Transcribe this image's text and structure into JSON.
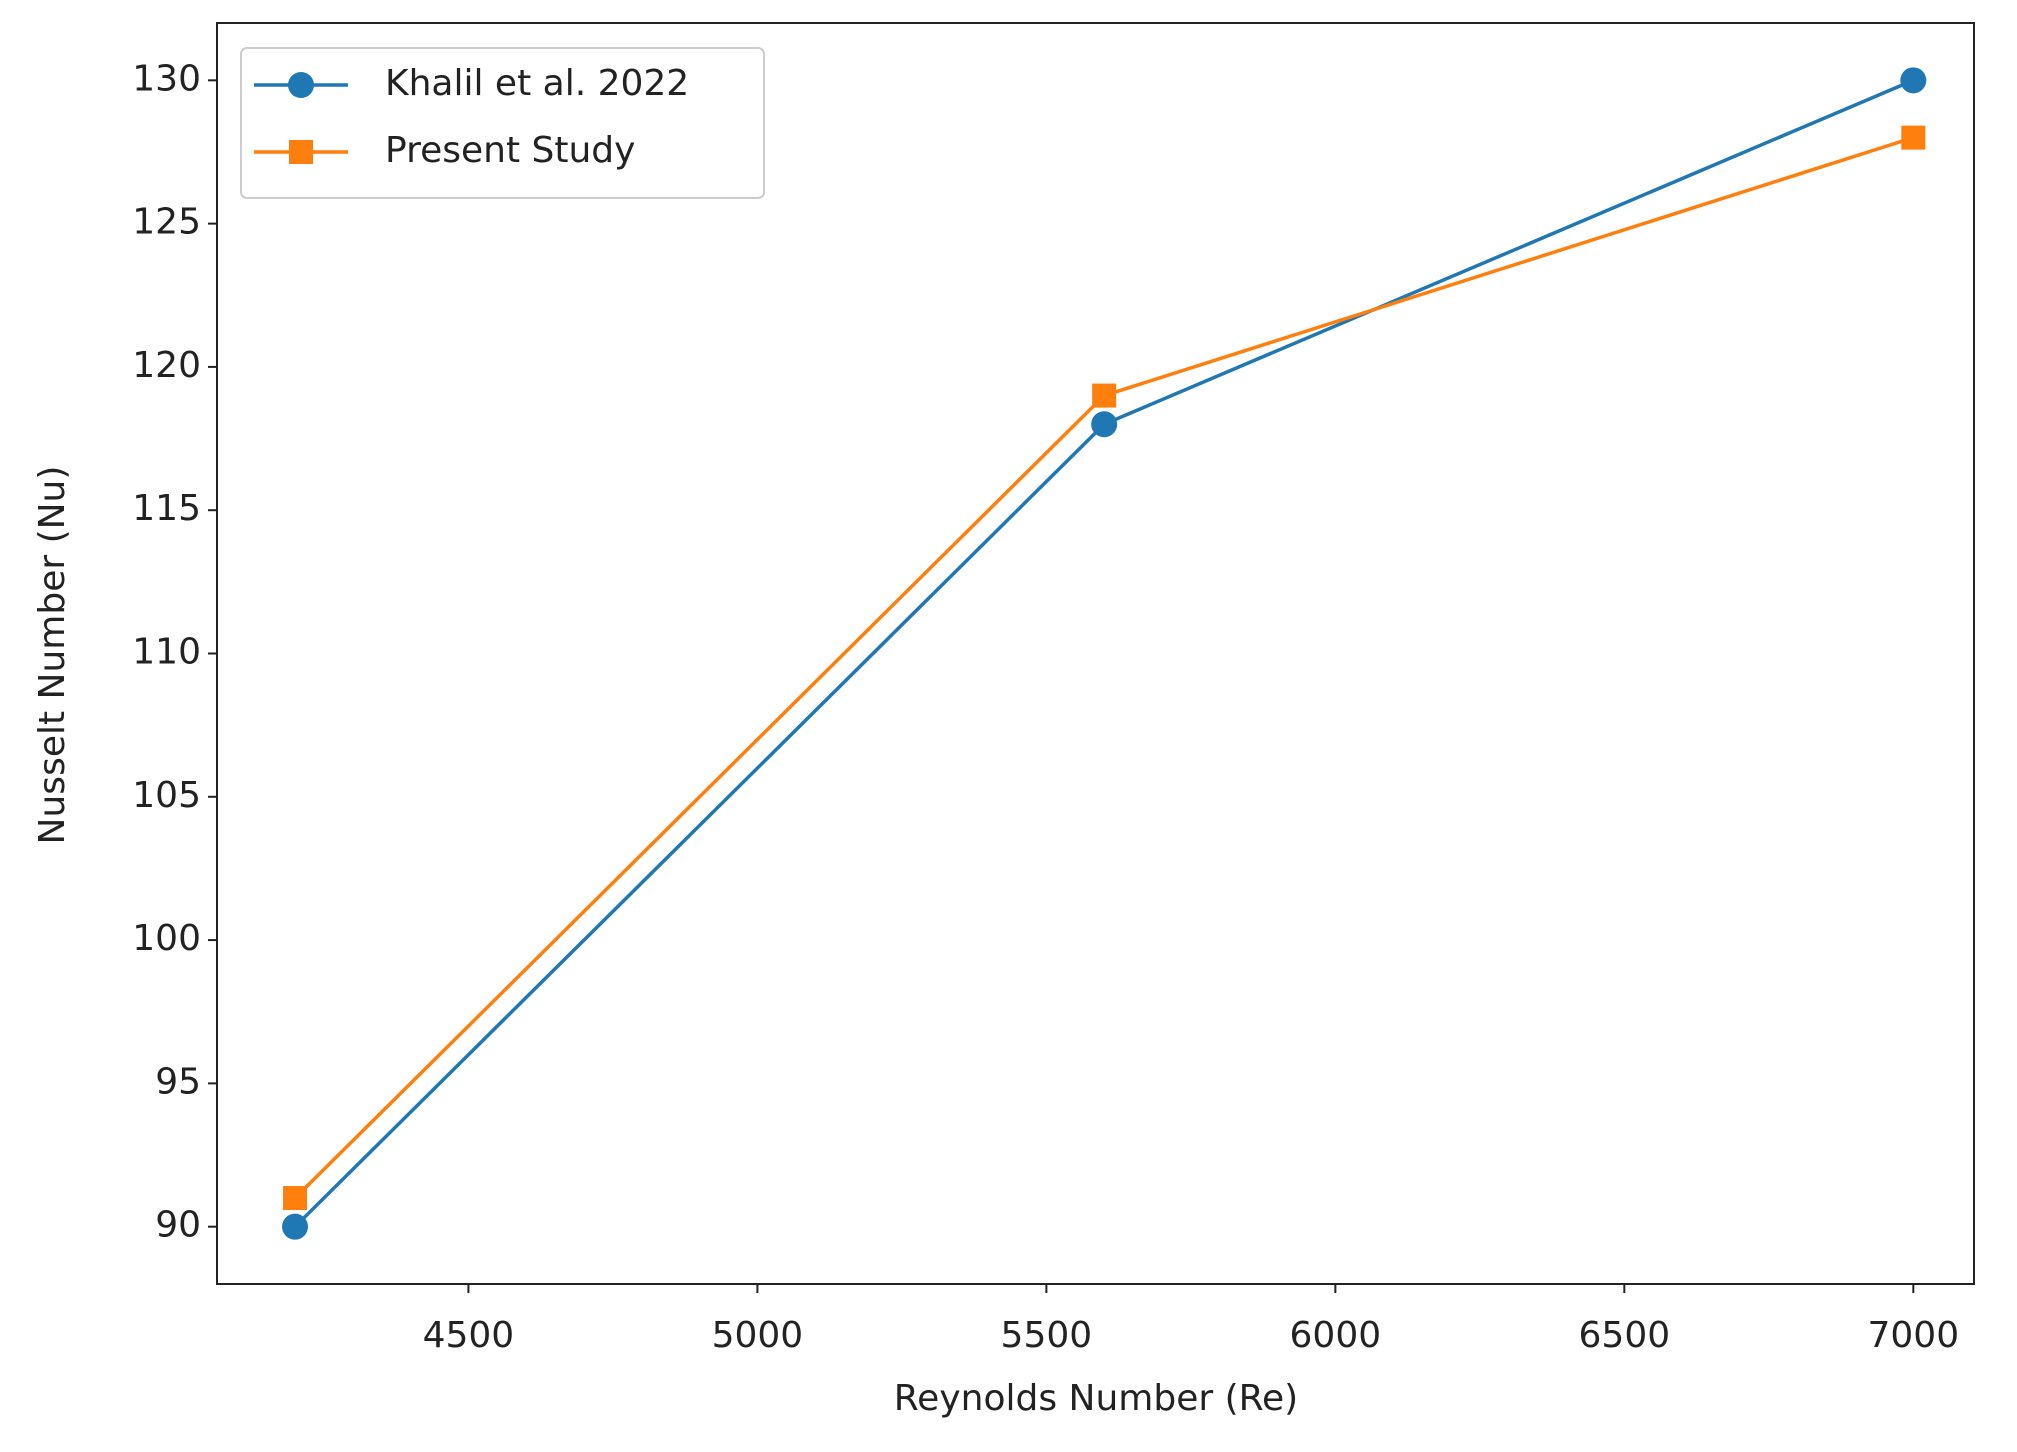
{
  "chart_data": {
    "type": "line",
    "x": [
      4200,
      5600,
      7000
    ],
    "series": [
      {
        "name": "Khalil et al. 2022",
        "color": "#1f77b4",
        "marker": "circle",
        "values": [
          90,
          118,
          130
        ]
      },
      {
        "name": "Present Study",
        "color": "#ff7f0e",
        "marker": "square",
        "values": [
          91,
          119,
          128
        ]
      }
    ],
    "x_label": "Reynolds Number (Re)",
    "y_label": "Nusselt Number (Nu)",
    "xlim": [
      4065,
      7105
    ],
    "ylim": [
      88,
      132
    ],
    "xticks": [
      4500,
      5000,
      5500,
      6000,
      6500,
      7000
    ],
    "yticks": [
      90,
      95,
      100,
      105,
      110,
      115,
      120,
      125,
      130
    ],
    "grid": false,
    "legend": "upper left"
  }
}
